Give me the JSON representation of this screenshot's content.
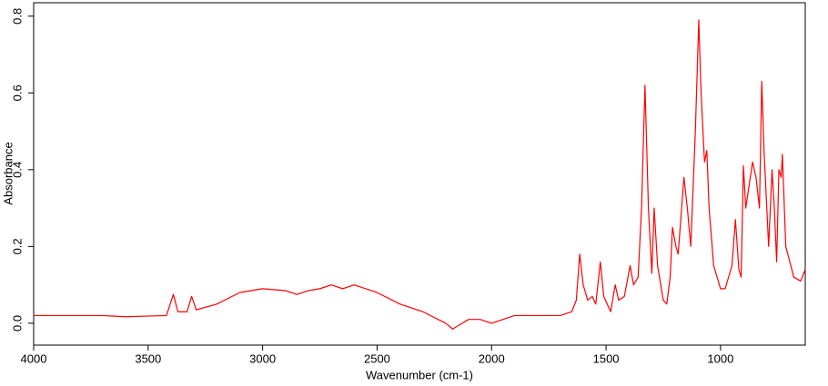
{
  "chart_data": {
    "type": "line",
    "x_label": "Wavenumber (cm-1)",
    "y_label": "Absorbance",
    "xlim": [
      4000,
      630
    ],
    "ylim": [
      -0.057,
      0.835
    ],
    "xticks": [
      4000,
      3500,
      3000,
      2500,
      2000,
      1500,
      1000
    ],
    "yticks": [
      {
        "value": 0,
        "label": "0.0"
      },
      0.2,
      0.4,
      0.6,
      0.8
    ],
    "x": [
      4000,
      3700,
      3600,
      3420,
      3390,
      3370,
      3330,
      3310,
      3290,
      3200,
      3100,
      3000,
      2900,
      2850,
      2800,
      2750,
      2700,
      2650,
      2600,
      2500,
      2400,
      2300,
      2200,
      2170,
      2100,
      2050,
      2000,
      1950,
      1900,
      1800,
      1700,
      1650,
      1630,
      1615,
      1600,
      1580,
      1560,
      1545,
      1525,
      1510,
      1480,
      1460,
      1445,
      1420,
      1395,
      1380,
      1360,
      1345,
      1330,
      1315,
      1300,
      1290,
      1275,
      1250,
      1235,
      1220,
      1210,
      1195,
      1185,
      1160,
      1145,
      1130,
      1110,
      1095,
      1085,
      1070,
      1060,
      1050,
      1030,
      1000,
      980,
      950,
      935,
      920,
      910,
      900,
      890,
      870,
      860,
      845,
      830,
      820,
      810,
      790,
      775,
      765,
      755,
      745,
      735,
      730,
      715,
      680,
      650,
      630
    ],
    "series": [
      {
        "name": "Absorbance",
        "color": "#ff0000",
        "values": [
          0.02,
          0.02,
          0.017,
          0.02,
          0.075,
          0.03,
          0.03,
          0.07,
          0.035,
          0.05,
          0.08,
          0.09,
          0.085,
          0.075,
          0.085,
          0.09,
          0.1,
          0.09,
          0.1,
          0.08,
          0.05,
          0.03,
          0.0,
          -0.015,
          0.01,
          0.01,
          0.0,
          0.01,
          0.02,
          0.02,
          0.02,
          0.03,
          0.06,
          0.18,
          0.1,
          0.06,
          0.07,
          0.05,
          0.16,
          0.07,
          0.03,
          0.1,
          0.06,
          0.07,
          0.15,
          0.1,
          0.12,
          0.3,
          0.62,
          0.3,
          0.13,
          0.3,
          0.15,
          0.06,
          0.05,
          0.12,
          0.25,
          0.2,
          0.18,
          0.38,
          0.3,
          0.2,
          0.5,
          0.79,
          0.6,
          0.42,
          0.45,
          0.3,
          0.15,
          0.09,
          0.09,
          0.15,
          0.27,
          0.14,
          0.12,
          0.41,
          0.3,
          0.38,
          0.42,
          0.38,
          0.3,
          0.63,
          0.45,
          0.2,
          0.4,
          0.3,
          0.16,
          0.4,
          0.38,
          0.44,
          0.2,
          0.12,
          0.11,
          0.14
        ]
      }
    ]
  }
}
